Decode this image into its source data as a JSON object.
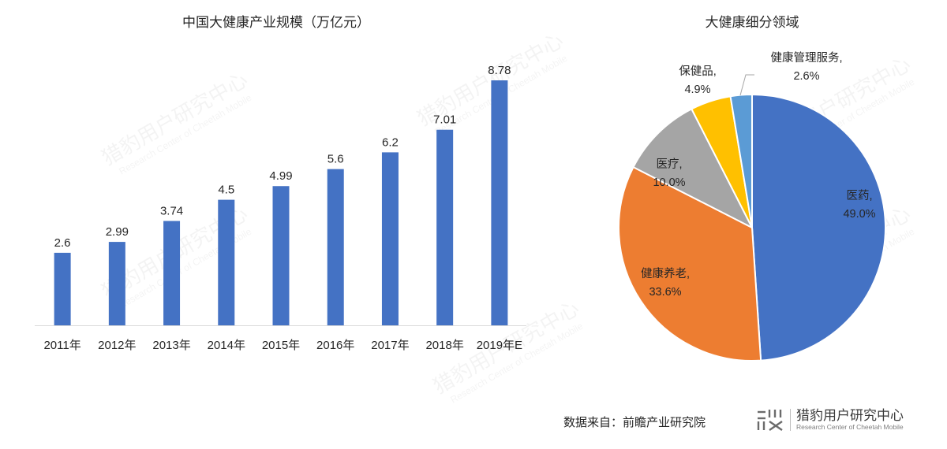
{
  "bar_chart": {
    "title": "中国大健康产业规模（万亿元）"
  },
  "pie_chart": {
    "title": "大健康细分领域"
  },
  "chart_data": [
    {
      "type": "bar",
      "title": "中国大健康产业规模（万亿元）",
      "xlabel": "",
      "ylabel": "",
      "categories": [
        "2011年",
        "2012年",
        "2013年",
        "2014年",
        "2015年",
        "2016年",
        "2017年",
        "2018年",
        "2019年E"
      ],
      "values": [
        2.6,
        2.99,
        3.74,
        4.5,
        4.99,
        5.6,
        6.2,
        7.01,
        8.78
      ],
      "value_labels": [
        "2.6",
        "2.99",
        "3.74",
        "4.5",
        "4.99",
        "5.6",
        "6.2",
        "7.01",
        "8.78"
      ],
      "color": "#4472C4",
      "grid": false,
      "legend": "none",
      "ylim": [
        0,
        8.78
      ]
    },
    {
      "type": "pie",
      "title": "大健康细分领域",
      "slices": [
        {
          "name": "医药",
          "value": 49.0,
          "label": "医药,",
          "pct": "49.0%",
          "color": "#4472C4"
        },
        {
          "name": "健康养老",
          "value": 33.6,
          "label": "健康养老,",
          "pct": "33.6%",
          "color": "#ED7D31"
        },
        {
          "name": "医疗",
          "value": 10.0,
          "label": "医疗,",
          "pct": "10.0%",
          "color": "#A5A5A5"
        },
        {
          "name": "保健品",
          "value": 4.9,
          "label": "保健品,",
          "pct": "4.9%",
          "color": "#FFC000"
        },
        {
          "name": "健康管理服务",
          "value": 2.6,
          "label": "健康管理服务,",
          "pct": "2.6%",
          "color": "#5B9BD5"
        }
      ],
      "start_angle": "12 o'clock, clockwise",
      "legend": "none (data labels)"
    }
  ],
  "footer": {
    "source": "数据来自：前瞻产业研究院",
    "brand_mark": "᠁",
    "brand_cn": "猎豹用户研究中心",
    "brand_en": "Research Center of Cheetah Mobile"
  },
  "watermark": {
    "cn": "猎豹用户研究中心",
    "en": "Research Center of Cheetah Mobile"
  }
}
